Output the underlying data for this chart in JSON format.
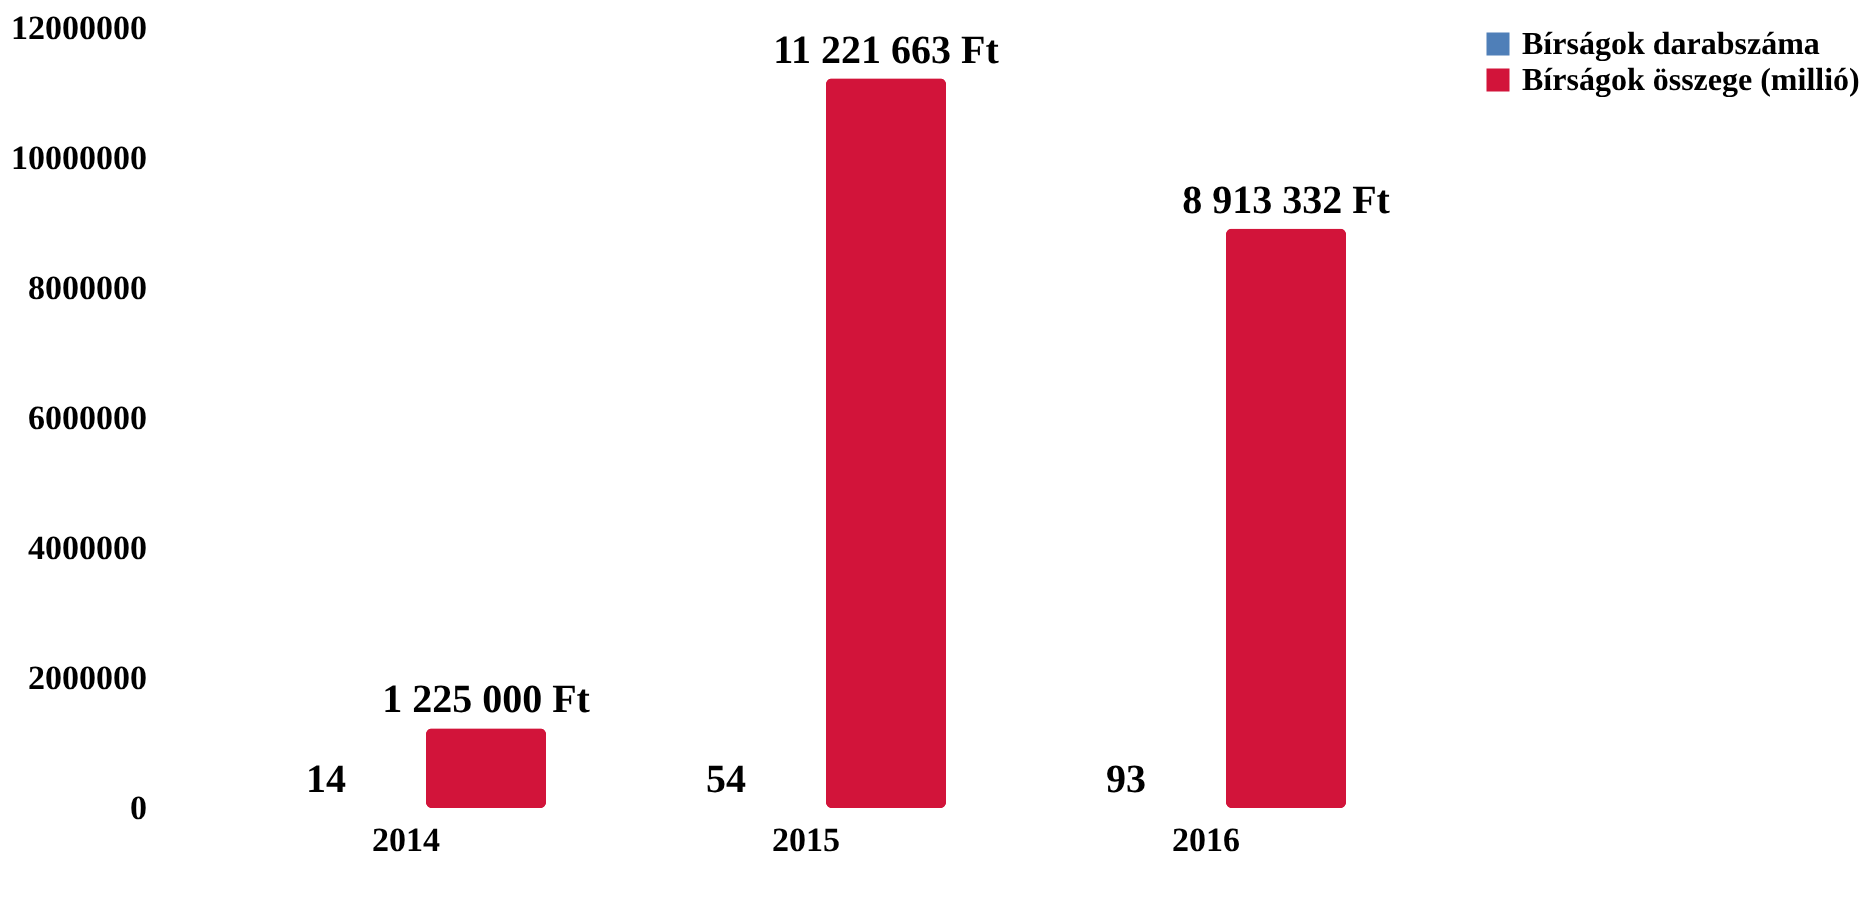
{
  "chart_data": {
    "type": "bar",
    "categories": [
      "2014",
      "2015",
      "2016"
    ],
    "series": [
      {
        "name": "Bírságok darabszáma",
        "color": "#4f7fb8",
        "values": [
          14,
          54,
          93
        ],
        "value_labels": [
          "14",
          "54",
          "93"
        ]
      },
      {
        "name": "Bírságok összege (millió)",
        "color": "#d2143a",
        "values": [
          1225000,
          11221663,
          8913332
        ],
        "value_labels": [
          "1 225 000 Ft",
          "11 221 663 Ft",
          "8 913 332 Ft"
        ]
      }
    ],
    "ylim": [
      0,
      12000000
    ],
    "yticks": [
      0,
      2000000,
      4000000,
      6000000,
      8000000,
      10000000,
      12000000
    ],
    "grid": false,
    "legend": "right"
  }
}
